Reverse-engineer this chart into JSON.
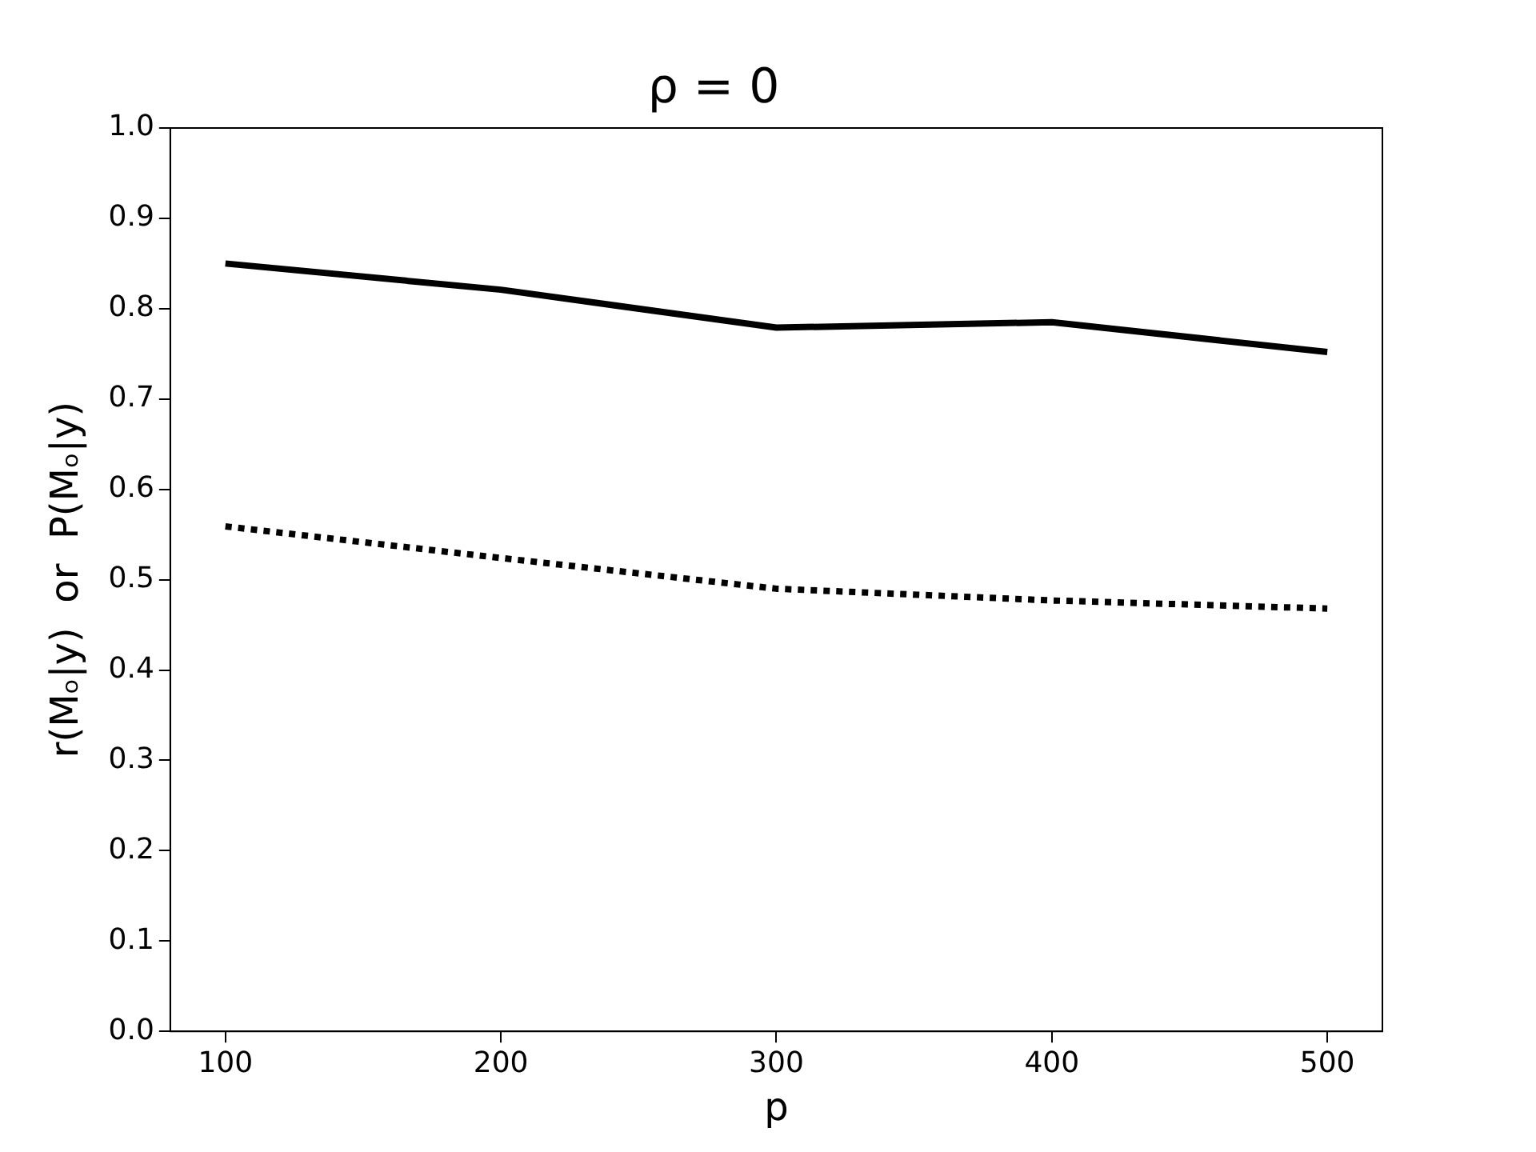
{
  "chart_data": {
    "type": "line",
    "title": "ρ = 0",
    "xlabel": "p",
    "ylabel": "r(Mₒ|y)  or  P(Mₒ|y)",
    "x": [
      100,
      200,
      300,
      400,
      500
    ],
    "series": [
      {
        "color": "#000000",
        "line_style": "solid",
        "values": [
          0.85,
          0.821,
          0.779,
          0.785,
          0.752
        ]
      },
      {
        "color": "#000000",
        "line_style": "dotted",
        "values": [
          0.559,
          0.524,
          0.49,
          0.477,
          0.468
        ]
      }
    ],
    "xlim": [
      80,
      520
    ],
    "xticks": [
      100,
      200,
      300,
      400,
      500
    ],
    "ylim": [
      0,
      1
    ],
    "yticks": [
      {
        "value": 0,
        "label": "0.0"
      },
      {
        "value": 0.1,
        "label": "0.1"
      },
      {
        "value": 0.2,
        "label": "0.2"
      },
      {
        "value": 0.3,
        "label": "0.3"
      },
      {
        "value": 0.4,
        "label": "0.4"
      },
      {
        "value": 0.5,
        "label": "0.5"
      },
      {
        "value": 0.6,
        "label": "0.6"
      },
      {
        "value": 0.7,
        "label": "0.7"
      },
      {
        "value": 0.8,
        "label": "0.8"
      },
      {
        "value": 0.9,
        "label": "0.9"
      },
      {
        "value": 1,
        "label": "1.0"
      }
    ],
    "grid": false,
    "legend": false,
    "marker": "none"
  }
}
